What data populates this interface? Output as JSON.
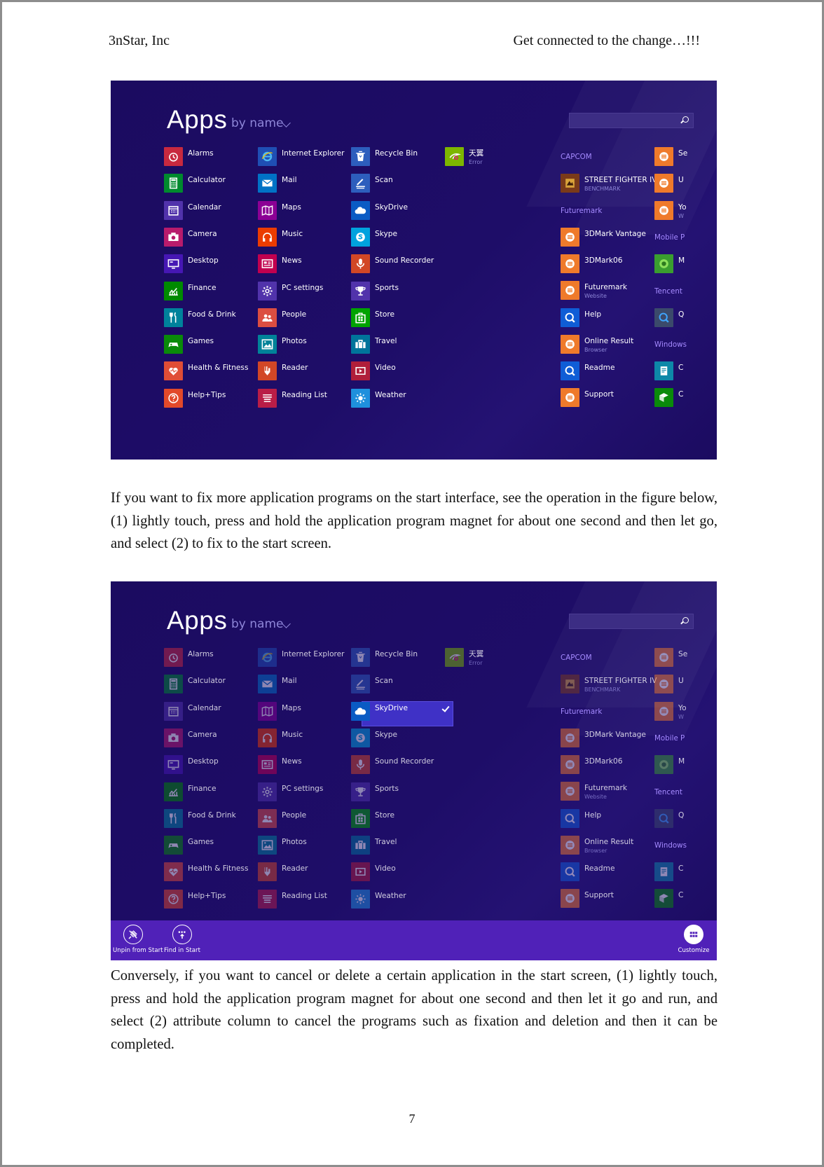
{
  "header": {
    "left": "3nStar, Inc",
    "right": "Get connected to the change…!!!"
  },
  "screen": {
    "title": "Apps",
    "sort": "by name",
    "apps": {
      "col1": [
        {
          "label": "Alarms",
          "icon": "alarm-icon",
          "color": "#c8293f"
        },
        {
          "label": "Calculator",
          "icon": "calculator-icon",
          "color": "#008a2e"
        },
        {
          "label": "Calendar",
          "icon": "calendar-icon",
          "color": "#5133ab"
        },
        {
          "label": "Camera",
          "icon": "camera-icon",
          "color": "#b81b6c"
        },
        {
          "label": "Desktop",
          "icon": "desktop-icon",
          "color": "#4617b4"
        },
        {
          "label": "Finance",
          "icon": "finance-icon",
          "color": "#008a00"
        },
        {
          "label": "Food & Drink",
          "icon": "food-drink-icon",
          "color": "#00829b"
        },
        {
          "label": "Games",
          "icon": "games-icon",
          "color": "#0a8a0a"
        },
        {
          "label": "Health & Fitness",
          "icon": "health-fitness-icon",
          "color": "#e04d36"
        },
        {
          "label": "Help+Tips",
          "icon": "help-tips-icon",
          "color": "#e2492a"
        }
      ],
      "col2": [
        {
          "label": "Internet Explorer",
          "icon": "internet-explorer-icon",
          "color": "#1f4fb4"
        },
        {
          "label": "Mail",
          "icon": "mail-icon",
          "color": "#0072c6"
        },
        {
          "label": "Maps",
          "icon": "maps-icon",
          "color": "#8c0095"
        },
        {
          "label": "Music",
          "icon": "music-icon",
          "color": "#eb3c00"
        },
        {
          "label": "News",
          "icon": "news-icon",
          "color": "#c1004f"
        },
        {
          "label": "PC settings",
          "icon": "pc-settings-icon",
          "color": "#5133ab"
        },
        {
          "label": "People",
          "icon": "people-icon",
          "color": "#dc4e41"
        },
        {
          "label": "Photos",
          "icon": "photos-icon",
          "color": "#008299"
        },
        {
          "label": "Reader",
          "icon": "reader-icon",
          "color": "#d24726"
        },
        {
          "label": "Reading List",
          "icon": "reading-list-icon",
          "color": "#b91d47"
        }
      ],
      "col3": [
        {
          "label": "Recycle Bin",
          "icon": "recycle-bin-icon",
          "color": "#2d5ebd"
        },
        {
          "label": "Scan",
          "icon": "scan-icon",
          "color": "#2d5ebd"
        },
        {
          "label": "SkyDrive",
          "icon": "skydrive-icon",
          "color": "#0a5bc4"
        },
        {
          "label": "Skype",
          "icon": "skype-icon",
          "color": "#00a2de"
        },
        {
          "label": "Sound Recorder",
          "icon": "sound-recorder-icon",
          "color": "#d24726"
        },
        {
          "label": "Sports",
          "icon": "sports-icon",
          "color": "#5133ab"
        },
        {
          "label": "Store",
          "icon": "store-icon",
          "color": "#00a300"
        },
        {
          "label": "Travel",
          "icon": "travel-icon",
          "color": "#00749b"
        },
        {
          "label": "Video",
          "icon": "video-icon",
          "color": "#b01e3a"
        },
        {
          "label": "Weather",
          "icon": "weather-icon",
          "color": "#1e90dd"
        }
      ],
      "col4": [
        {
          "label": "天翼",
          "sub": "Error",
          "icon": "tianyi-icon",
          "color": "#7db600"
        }
      ],
      "col5": [
        {
          "label": "STREET FIGHTER IV",
          "sub": "BENCHMARK",
          "icon": "street-fighter-icon",
          "color": "#7a3a1a"
        },
        {
          "label": "3DMark Vantage",
          "icon": "3dmark-vantage-icon",
          "color": "#ef7a2b"
        },
        {
          "label": "3DMark06",
          "icon": "3dmark06-icon",
          "color": "#ef7a2b"
        },
        {
          "label": "Futuremark",
          "sub": "Website",
          "icon": "futuremark-website-icon",
          "color": "#ef7a2b"
        },
        {
          "label": "Help",
          "icon": "help-icon",
          "color": "#0f5dd6"
        },
        {
          "label": "Online Result",
          "sub": "Browser",
          "icon": "online-result-browser-icon",
          "color": "#ef7a2b"
        },
        {
          "label": "Readme",
          "icon": "readme-icon",
          "color": "#0f5dd6"
        },
        {
          "label": "Support",
          "icon": "support-icon",
          "color": "#ef7a2b"
        }
      ],
      "col6": [
        {
          "label": "Se",
          "icon": "orange-app-icon",
          "color": "#ef7a2b"
        },
        {
          "label": "U",
          "icon": "orange-app-icon",
          "color": "#ef7a2b"
        },
        {
          "label": "Yo",
          "sub": "W",
          "icon": "orange-app-icon",
          "color": "#ef7a2b"
        },
        {
          "label": "M",
          "icon": "mobile-app-icon",
          "color": "#3a9e2f"
        },
        {
          "label": "Q",
          "icon": "tencent-app-icon",
          "color": "#3b4a6b"
        },
        {
          "label": "C",
          "icon": "windows-app-icon",
          "color": "#0e88a8"
        },
        {
          "label": "C",
          "icon": "windows-app-icon-2",
          "color": "#0a8a0a"
        }
      ]
    },
    "groups": {
      "capcom": "CAPCOM",
      "futuremark": "Futuremark",
      "mobile": "Mobile P",
      "tencent": "Tencent",
      "windows": "Windows"
    },
    "appbar": {
      "unpin": "Unpin from Start",
      "find": "Find in Start",
      "customize": "Customize"
    },
    "selected_app": "SkyDrive"
  },
  "paragraphs": {
    "p1": "If you want to fix more application programs on the start interface, see the operation in the figure below, (1) lightly touch, press and hold the application program magnet for about one second and then let go, and select (2) to fix to the start screen.",
    "p2": "Conversely, if you want to cancel or delete a certain application in the start screen, (1) lightly touch, press and hold the application program magnet for about one second and then let it go and run, and select (2) attribute column to cancel the programs such as fixation and deletion and then it can be completed."
  },
  "page_number": "7"
}
